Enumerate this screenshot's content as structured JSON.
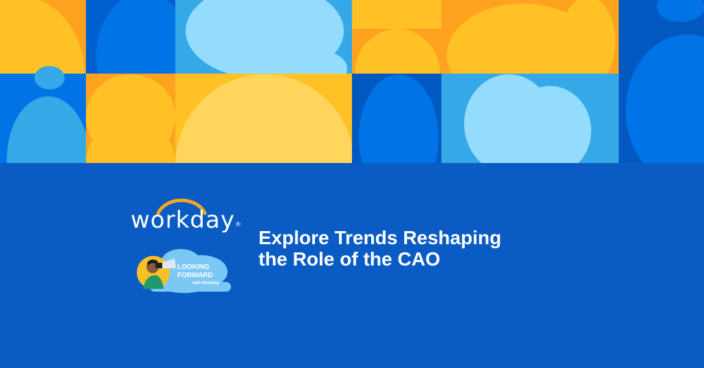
{
  "brand": {
    "name": "workday",
    "registered": "®"
  },
  "badge": {
    "line1": "LOOKING",
    "line2": "FORWARD",
    "line3": "with Workday"
  },
  "headline": {
    "line1": "Explore Trends Reshaping",
    "line2": "the Role of the CAO"
  },
  "colors": {
    "background": "#0a5cc4",
    "yellow": "#ffc125",
    "orange": "#ffa21f",
    "pale_yellow": "#ffd55c",
    "blue": "#0073e6",
    "sky": "#35a8e8",
    "light_sky": "#93dcfd",
    "arc": "#f5a623"
  }
}
